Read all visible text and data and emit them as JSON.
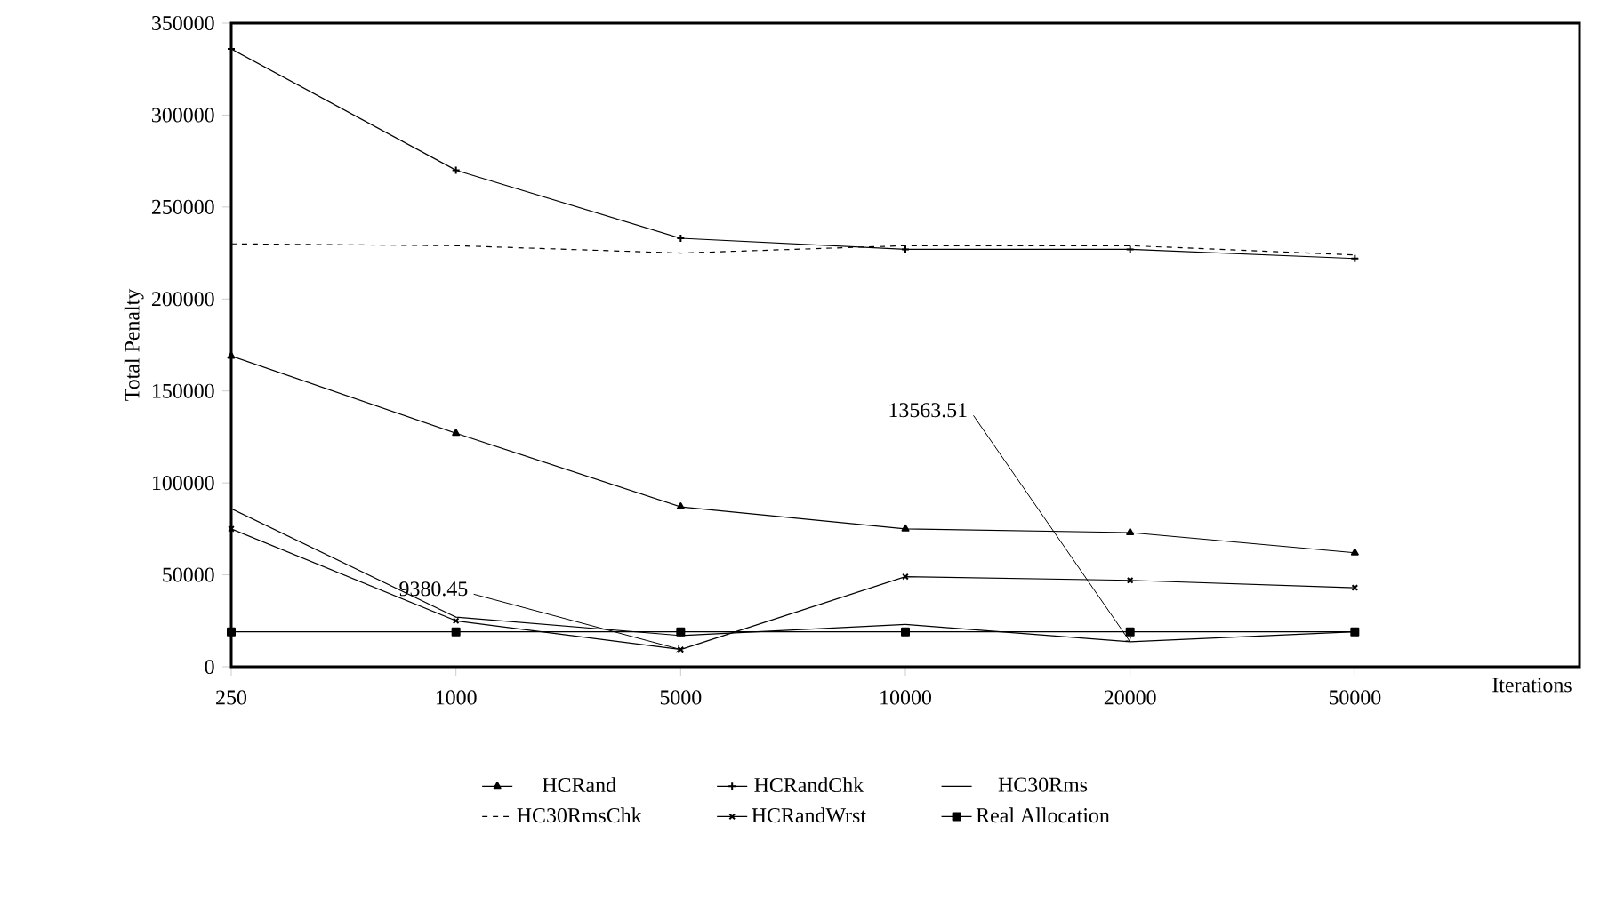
{
  "chart_data": {
    "type": "line",
    "xlabel": "Iterations",
    "ylabel": "Total Penalty",
    "categories": [
      "250",
      "1000",
      "5000",
      "10000",
      "20000",
      "50000"
    ],
    "ylim": [
      0,
      350000
    ],
    "yticks": [
      0,
      50000,
      100000,
      150000,
      200000,
      250000,
      300000,
      350000
    ],
    "grid": false,
    "legend": "bottom",
    "series": [
      {
        "name": "HCRand",
        "color": "#000000",
        "marker": "triangle",
        "line_style": "solid",
        "values": [
          169000,
          127000,
          87000,
          75000,
          73000,
          62000
        ]
      },
      {
        "name": "HCRandChk",
        "color": "#000000",
        "marker": "cross",
        "line_style": "solid",
        "values": [
          336000,
          270000,
          233000,
          227000,
          227000,
          222000
        ]
      },
      {
        "name": "HC30Rms",
        "color": "#000000",
        "marker": "none",
        "line_style": "solid",
        "values": [
          86000,
          27000,
          17000,
          23000,
          13563.51,
          19000
        ]
      },
      {
        "name": "HC30RmsChk",
        "color": "#000000",
        "marker": "none",
        "line_style": "dashed",
        "values": [
          230000,
          229000,
          225000,
          229000,
          229000,
          224000
        ]
      },
      {
        "name": "HCRandWrst",
        "color": "#000000",
        "marker": "x",
        "line_style": "solid",
        "values": [
          75000,
          25000,
          9380.45,
          49000,
          47000,
          43000
        ]
      },
      {
        "name": "Real Allocation",
        "color": "#000000",
        "marker": "square",
        "line_style": "solid",
        "values": [
          19000,
          19000,
          19000,
          19000,
          19000,
          19000
        ]
      }
    ],
    "annotations": [
      {
        "text": "9380.45",
        "x": "5000",
        "y": 9380.45
      },
      {
        "text": "13563.51",
        "x": "20000",
        "y": 13563.51
      }
    ]
  }
}
